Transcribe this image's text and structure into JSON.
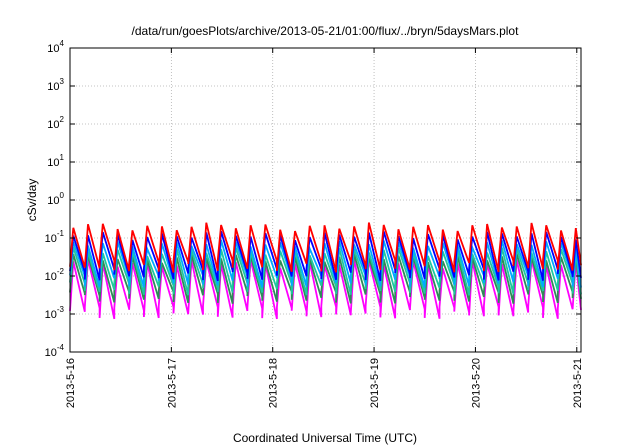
{
  "chart_data": {
    "type": "line",
    "title": "/data/run/goesPlots/archive/2013-05-21/01:00/flux/../bryn/5daysMars.plot",
    "xlabel": "Coordinated Universal Time (UTC)",
    "ylabel": "cSv/day",
    "yscale": "log",
    "ylim": [
      0.0001,
      10000
    ],
    "xlim": [
      "2013-05-16 00:00",
      "2013-05-21 01:00"
    ],
    "grid": true,
    "y_ticks": [
      {
        "base": "10",
        "exp": "-4"
      },
      {
        "base": "10",
        "exp": "-3"
      },
      {
        "base": "10",
        "exp": "-2"
      },
      {
        "base": "10",
        "exp": "-1"
      },
      {
        "base": "10",
        "exp": "0"
      },
      {
        "base": "10",
        "exp": "1"
      },
      {
        "base": "10",
        "exp": "2"
      },
      {
        "base": "10",
        "exp": "3"
      },
      {
        "base": "10",
        "exp": "4"
      }
    ],
    "x_ticks": [
      "2013-5-16",
      "2013-5-17",
      "2013-5-18",
      "2013-5-19",
      "2013-5-20",
      "2013-5-21"
    ],
    "sawtooth_period_hours": 3.5,
    "series": [
      {
        "color": "#ff0000",
        "peak": 0.2,
        "trough": 0.02
      },
      {
        "color": "#0000ff",
        "peak": 0.12,
        "trough": 0.012
      },
      {
        "color": "#00aaff",
        "peak": 0.07,
        "trough": 0.008
      },
      {
        "color": "#1ec8a0",
        "peak": 0.045,
        "trough": 0.005
      },
      {
        "color": "#2e8b57",
        "peak": 0.03,
        "trough": 0.003
      },
      {
        "color": "#ff00ff",
        "peak": 0.022,
        "trough": 0.0012
      }
    ]
  }
}
